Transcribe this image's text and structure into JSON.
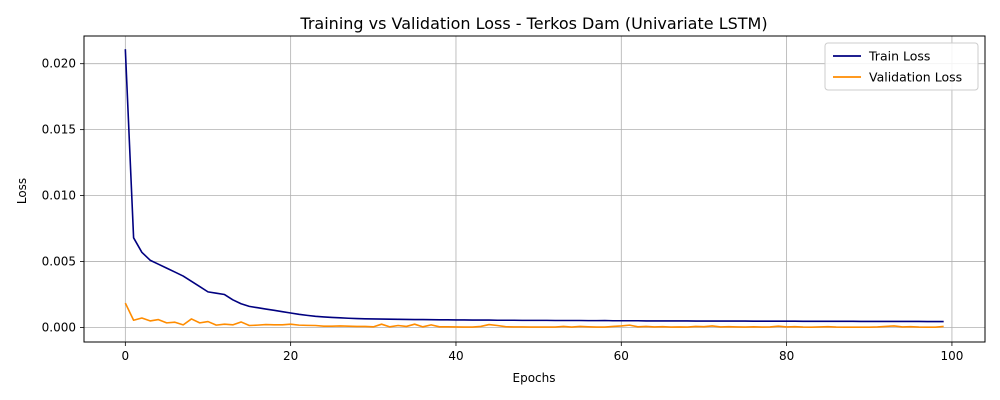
{
  "chart_data": {
    "type": "line",
    "title": "Training vs Validation Loss - Terkos Dam (Univariate LSTM)",
    "xlabel": "Epochs",
    "ylabel": "Loss",
    "xlim": [
      -5,
      104
    ],
    "ylim": [
      -0.0011,
      0.0221
    ],
    "xticks": [
      0,
      20,
      40,
      60,
      80,
      100
    ],
    "yticks": [
      0.0,
      0.005,
      0.01,
      0.015,
      0.02
    ],
    "ytick_labels": [
      "0.000",
      "0.005",
      "0.010",
      "0.015",
      "0.020"
    ],
    "grid": true,
    "legend_position": "top-right",
    "series": [
      {
        "name": "Train Loss",
        "color": "#000080",
        "values": [
          0.0211,
          0.0068,
          0.0057,
          0.0051,
          0.0048,
          0.0045,
          0.0042,
          0.0039,
          0.0035,
          0.0031,
          0.0027,
          0.0026,
          0.0025,
          0.0021,
          0.0018,
          0.0016,
          0.0015,
          0.0014,
          0.0013,
          0.0012,
          0.0011,
          0.001,
          0.00092,
          0.00085,
          0.0008,
          0.00076,
          0.00073,
          0.0007,
          0.00068,
          0.00066,
          0.00065,
          0.00064,
          0.00063,
          0.00062,
          0.00061,
          0.0006,
          0.0006,
          0.00059,
          0.00058,
          0.00058,
          0.00057,
          0.00057,
          0.00056,
          0.00056,
          0.00056,
          0.00055,
          0.00055,
          0.00055,
          0.00054,
          0.00054,
          0.00054,
          0.00054,
          0.00053,
          0.00053,
          0.00053,
          0.00053,
          0.00052,
          0.00052,
          0.00053,
          0.00051,
          0.00051,
          0.00051,
          0.00051,
          0.0005,
          0.0005,
          0.0005,
          0.0005,
          0.0005,
          0.0005,
          0.00049,
          0.00049,
          0.00049,
          0.00049,
          0.00049,
          0.00049,
          0.00049,
          0.00048,
          0.00048,
          0.00048,
          0.00048,
          0.00048,
          0.00048,
          0.00047,
          0.00047,
          0.00047,
          0.00047,
          0.00047,
          0.00047,
          0.00047,
          0.00046,
          0.00046,
          0.00046,
          0.00046,
          0.00046,
          0.00046,
          0.00046,
          0.00046,
          0.00045,
          0.00045,
          0.00045
        ]
      },
      {
        "name": "Validation Loss",
        "color": "#ff8c00",
        "values": [
          0.00185,
          0.00055,
          0.00072,
          0.0005,
          0.0006,
          0.00035,
          0.0004,
          0.0002,
          0.00065,
          0.00035,
          0.00045,
          0.00018,
          0.00025,
          0.0002,
          0.00042,
          0.00015,
          0.00018,
          0.00022,
          0.0002,
          0.0002,
          0.00025,
          0.00018,
          0.00016,
          0.00015,
          0.0001,
          0.0001,
          0.00012,
          0.0001,
          8e-05,
          8e-05,
          5e-05,
          0.00025,
          5e-05,
          0.00015,
          8e-05,
          0.00025,
          5e-05,
          0.0002,
          5e-05,
          5e-05,
          4e-05,
          3e-05,
          3e-05,
          8e-05,
          0.00022,
          0.00015,
          6e-05,
          4e-05,
          4e-05,
          3e-05,
          3e-05,
          3e-05,
          3e-05,
          8e-05,
          3e-05,
          8e-05,
          5e-05,
          3e-05,
          3e-05,
          8e-05,
          0.00012,
          0.00018,
          5e-05,
          8e-05,
          4e-05,
          6e-05,
          3e-05,
          4e-05,
          3e-05,
          8e-05,
          6e-05,
          0.00012,
          4e-05,
          6e-05,
          4e-05,
          3e-05,
          5e-05,
          3e-05,
          4e-05,
          0.0001,
          4e-05,
          6e-05,
          3e-05,
          2e-05,
          4e-05,
          6e-05,
          3e-05,
          2e-05,
          2e-05,
          2e-05,
          2e-05,
          4e-05,
          8e-05,
          0.00012,
          4e-05,
          6e-05,
          3e-05,
          2e-05,
          2e-05,
          8e-05
        ]
      }
    ]
  }
}
